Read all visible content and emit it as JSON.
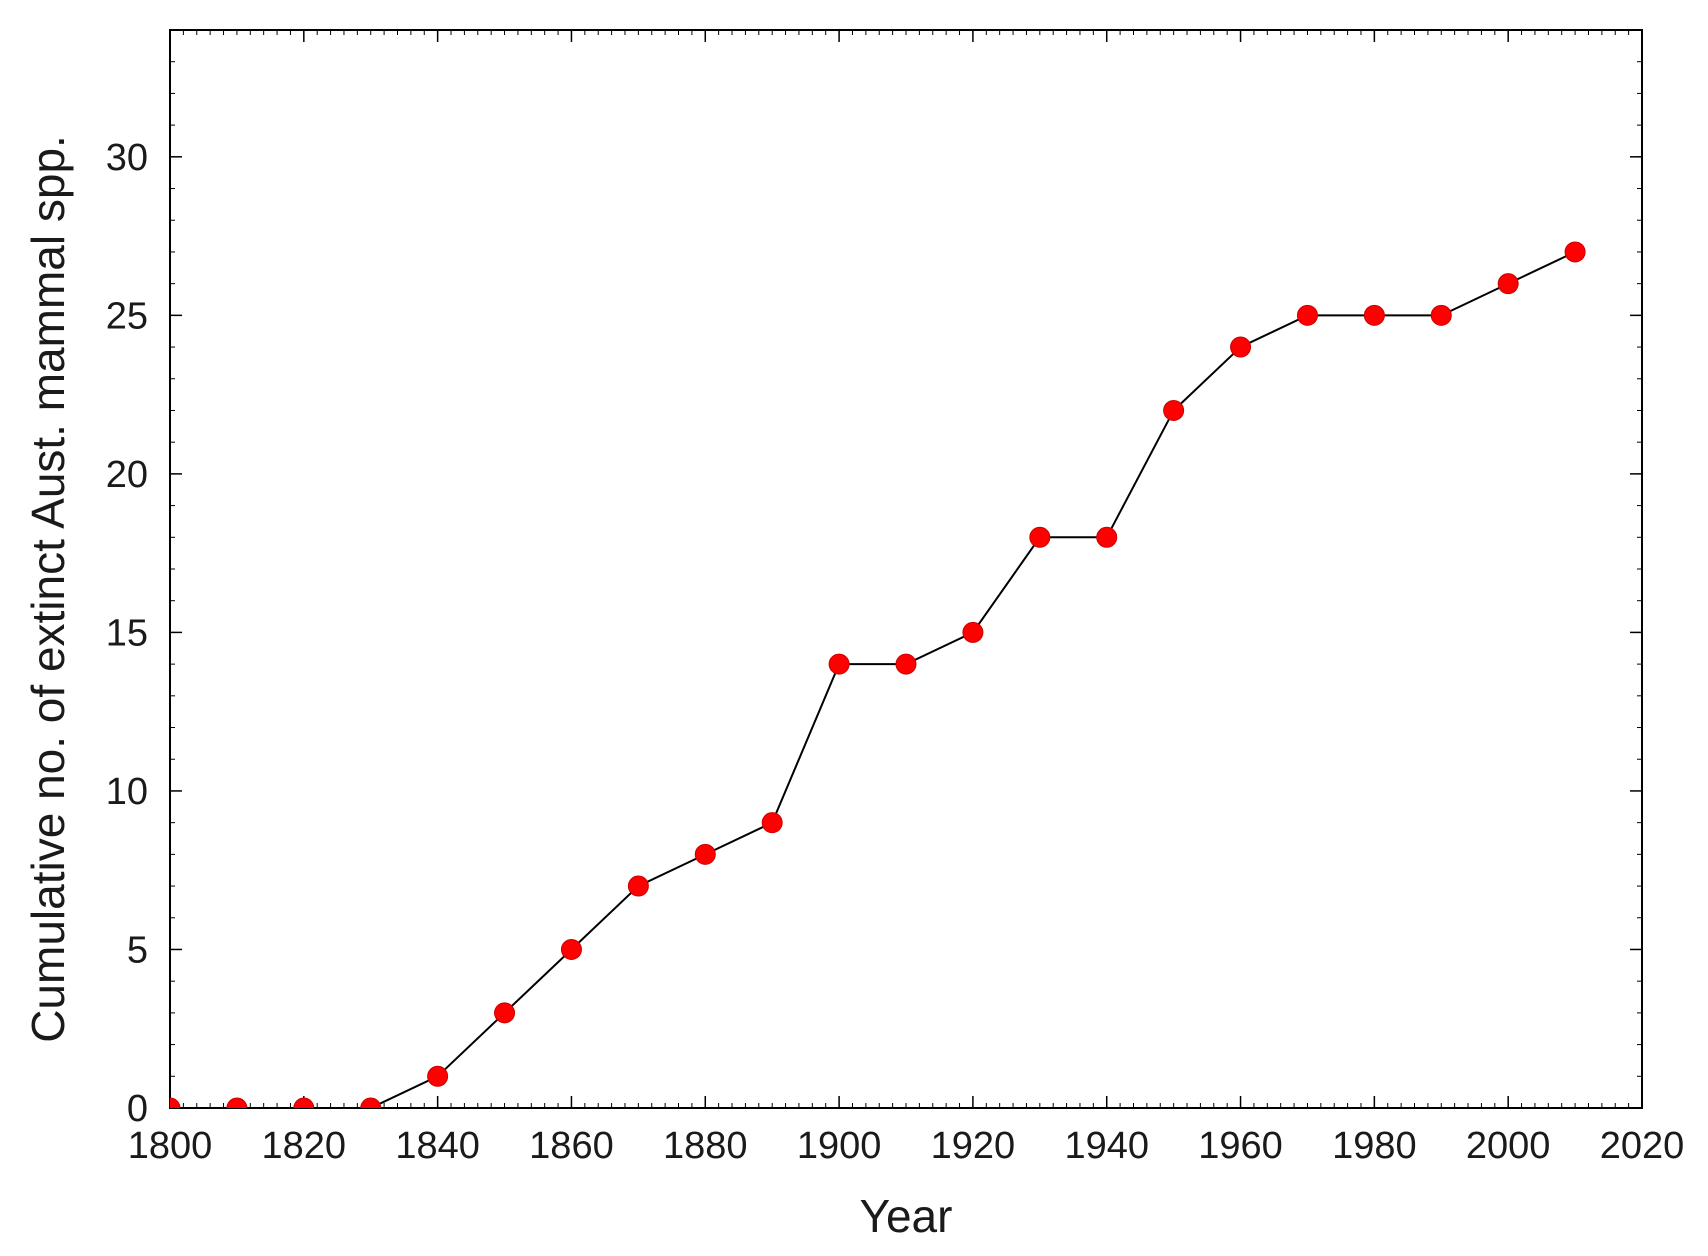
{
  "chart_data": {
    "type": "line",
    "xlabel": "Year",
    "ylabel": "Cumulative no. of extinct Aust. mammal spp.",
    "xlim": [
      1800,
      2020
    ],
    "ylim": [
      0,
      34
    ],
    "x_ticks": [
      1800,
      1820,
      1840,
      1860,
      1880,
      1900,
      1920,
      1940,
      1960,
      1980,
      2000,
      2020
    ],
    "y_ticks": [
      0,
      5,
      10,
      15,
      20,
      25,
      30
    ],
    "grid": false,
    "legend": "none",
    "series": [
      {
        "x": [
          1800,
          1810,
          1820,
          1830,
          1840,
          1850,
          1860,
          1870,
          1880,
          1890,
          1900,
          1910,
          1920,
          1930,
          1940,
          1950,
          1960,
          1970,
          1980,
          1990,
          2000,
          2010
        ],
        "y": [
          0,
          0,
          0,
          0,
          1,
          3,
          5,
          7,
          8,
          9,
          14,
          14,
          15,
          18,
          18,
          22,
          24,
          25,
          25,
          25,
          26,
          27
        ],
        "line_color": "#000000",
        "marker_color": "#ff0000"
      }
    ]
  }
}
